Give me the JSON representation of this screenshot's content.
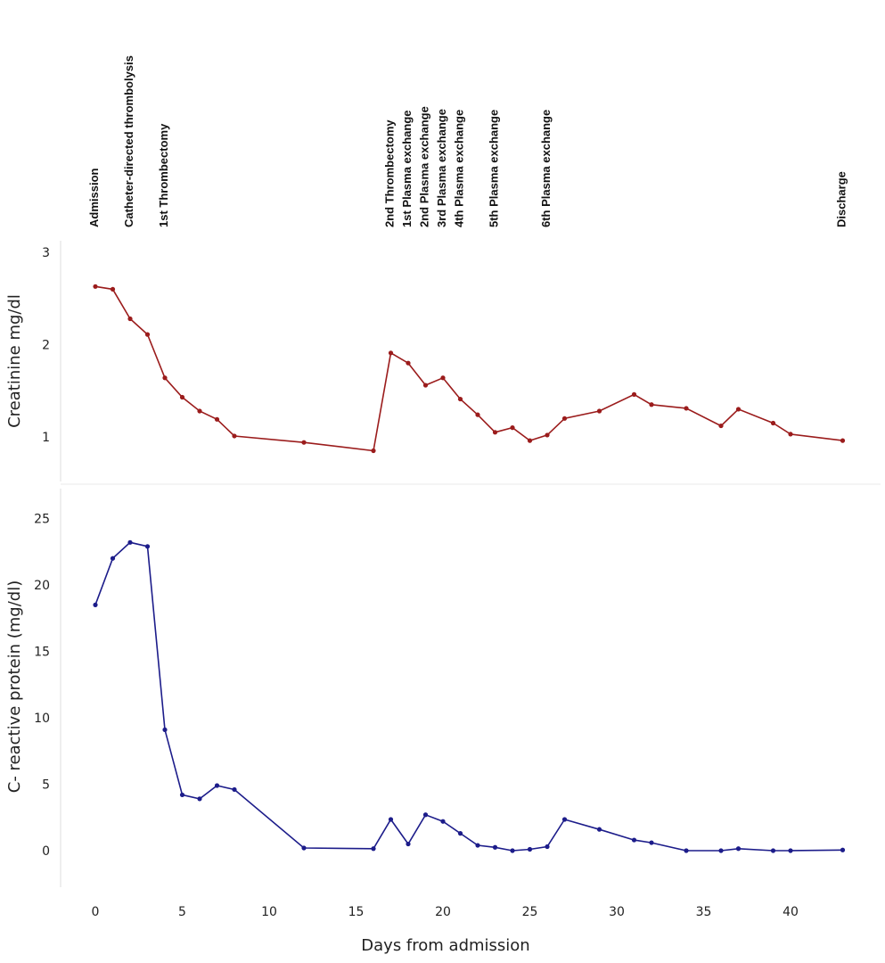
{
  "chart_data": [
    {
      "type": "line",
      "ylabel": "Creatinine mg/dl",
      "ylim": [
        0.7,
        3.0
      ],
      "yticks": [
        1,
        2,
        3
      ],
      "color": "#9b1c1c",
      "series": [
        {
          "name": "Creatinine",
          "x": [
            0,
            1,
            2,
            3,
            4,
            5,
            6,
            7,
            8,
            12,
            16,
            17,
            18,
            19,
            20,
            21,
            22,
            23,
            24,
            25,
            26,
            27,
            29,
            31,
            32,
            34,
            36,
            37,
            39,
            40,
            43
          ],
          "y": [
            2.63,
            2.6,
            2.28,
            2.11,
            1.64,
            1.43,
            1.28,
            1.19,
            1.01,
            0.94,
            0.85,
            1.91,
            1.8,
            1.56,
            1.64,
            1.41,
            1.24,
            1.05,
            1.1,
            0.96,
            1.02,
            1.2,
            1.28,
            1.46,
            1.35,
            1.31,
            1.12,
            1.3,
            1.15,
            1.03,
            0.96
          ]
        }
      ]
    },
    {
      "type": "line",
      "ylabel": "C- reactive protein (mg/dl)",
      "ylim": [
        -3,
        26
      ],
      "yticks": [
        0,
        5,
        10,
        15,
        20,
        25
      ],
      "color": "#1c1c8a",
      "xlabel": "Days from admission",
      "xlim": [
        -1.5,
        45
      ],
      "xticks": [
        0,
        5,
        10,
        15,
        20,
        25,
        30,
        35,
        40
      ],
      "series": [
        {
          "name": "CRP",
          "x": [
            0,
            1,
            2,
            3,
            4,
            5,
            6,
            7,
            8,
            12,
            16,
            17,
            18,
            19,
            20,
            21,
            22,
            23,
            24,
            25,
            26,
            27,
            29,
            31,
            32,
            34,
            36,
            37,
            39,
            40,
            43
          ],
          "y": [
            18.5,
            22.0,
            23.2,
            22.9,
            9.1,
            4.2,
            3.9,
            4.9,
            4.6,
            0.2,
            0.15,
            2.35,
            0.5,
            2.7,
            2.2,
            1.3,
            0.4,
            0.25,
            0.0,
            0.1,
            0.3,
            2.35,
            1.6,
            0.8,
            0.6,
            0.0,
            0.0,
            0.15,
            0.0,
            0.0,
            0.05
          ]
        }
      ]
    }
  ],
  "events": [
    {
      "day": 0,
      "label": "Admission"
    },
    {
      "day": 2,
      "label": "Catheter-directed thrombolysis"
    },
    {
      "day": 4,
      "label": "1st Thrombectomy"
    },
    {
      "day": 17,
      "label": "2nd Thrombectomy"
    },
    {
      "day": 18,
      "label": "1st Plasma exchange"
    },
    {
      "day": 19,
      "label": "2nd Plasma exchange"
    },
    {
      "day": 20,
      "label": "3rd Plasma exchange"
    },
    {
      "day": 21,
      "label": "4th Plasma exchange"
    },
    {
      "day": 23,
      "label": "5th Plasma exchange"
    },
    {
      "day": 26,
      "label": "6th Plasma exchange"
    },
    {
      "day": 43,
      "label": "Discharge"
    }
  ]
}
